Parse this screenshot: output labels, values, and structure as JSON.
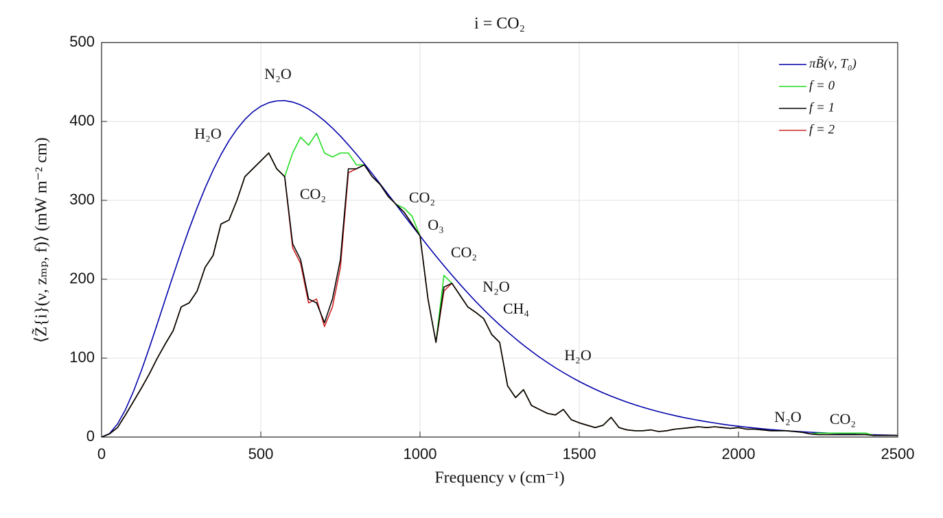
{
  "chart_data": {
    "type": "line",
    "title": "i =  CO₂",
    "x_label": "Frequency ν (cm⁻¹)",
    "y_label": "⟨Z̃{i}(ν, zₘₚ, f)⟩ (mW m⁻² cm)",
    "xlim": [
      0,
      2500
    ],
    "ylim": [
      0,
      500
    ],
    "xticks": [
      0,
      500,
      1000,
      1500,
      2000,
      2500
    ],
    "yticks": [
      0,
      100,
      200,
      300,
      400,
      500
    ],
    "grid": true,
    "legend": "upper right",
    "annotations": [
      "N₂O",
      "H₂O",
      "CO₂",
      "CO₂",
      "O₃",
      "CO₂",
      "N₂O",
      "CH₄",
      "H₂O",
      "N₂O",
      "CO₂"
    ],
    "x": [
      0,
      25,
      50,
      75,
      100,
      125,
      150,
      175,
      200,
      225,
      250,
      275,
      300,
      325,
      350,
      375,
      400,
      425,
      450,
      475,
      500,
      525,
      550,
      575,
      600,
      625,
      650,
      675,
      700,
      725,
      750,
      775,
      800,
      825,
      850,
      875,
      900,
      925,
      950,
      975,
      1000,
      1025,
      1050,
      1075,
      1100,
      1125,
      1150,
      1175,
      1200,
      1225,
      1250,
      1275,
      1300,
      1325,
      1350,
      1375,
      1400,
      1425,
      1450,
      1475,
      1500,
      1525,
      1550,
      1575,
      1600,
      1625,
      1650,
      1675,
      1700,
      1725,
      1750,
      1775,
      1800,
      1825,
      1850,
      1875,
      1900,
      1925,
      1950,
      1975,
      2000,
      2025,
      2050,
      2075,
      2100,
      2125,
      2150,
      2175,
      2200,
      2225,
      2250,
      2275,
      2300,
      2325,
      2350,
      2375,
      2400,
      2425,
      2450,
      2475,
      2500
    ],
    "series": [
      {
        "name": "πB̃(ν, T₀)",
        "color": "#0000aa",
        "values": [
          0,
          4.4,
          16.5,
          34.7,
          57.7,
          84.3,
          113.2,
          143.5,
          174.4,
          205.1,
          235.1,
          263.7,
          290.6,
          315.5,
          338.0,
          358.0,
          375.5,
          390.3,
          402.5,
          412.1,
          419.2,
          423.7,
          426.1,
          426.4,
          424.5,
          421.0,
          415.7,
          408.8,
          400.8,
          391.6,
          381.5,
          370.3,
          358.6,
          346.4,
          333.7,
          320.7,
          307.6,
          294.4,
          280.9,
          267.8,
          254.9,
          242.0,
          229.4,
          217.2,
          205.3,
          193.7,
          182.6,
          171.8,
          161.5,
          151.6,
          142.2,
          133.2,
          124.6,
          116.4,
          108.7,
          101.3,
          94.4,
          87.8,
          81.7,
          75.9,
          70.4,
          65.3,
          60.5,
          56.0,
          51.8,
          47.9,
          44.3,
          40.9,
          37.7,
          34.8,
          32.1,
          29.6,
          27.2,
          25.0,
          23.0,
          21.1,
          19.4,
          17.8,
          16.3,
          14.9,
          13.7,
          12.5,
          11.5,
          10.5,
          9.6,
          8.8,
          8.0,
          7.3,
          6.7,
          6.1,
          5.6,
          5.1,
          4.6,
          4.2,
          3.9,
          3.5,
          3.2,
          2.9,
          2.7,
          2.4,
          2.2
        ]
      },
      {
        "name": "f = 0",
        "color": "#22dd22",
        "values": [
          0,
          4,
          12,
          28,
          45,
          62,
          80,
          100,
          118,
          135,
          165,
          170,
          185,
          215,
          230,
          270,
          275,
          300,
          330,
          340,
          350,
          360,
          340,
          330,
          360,
          380,
          370,
          385,
          360,
          355,
          360,
          360,
          345,
          345,
          330,
          320,
          305,
          295,
          290,
          280,
          255,
          175,
          120,
          205,
          195,
          180,
          165,
          158,
          150,
          130,
          120,
          65,
          50,
          60,
          40,
          35,
          30,
          28,
          35,
          22,
          18,
          15,
          12,
          15,
          25,
          12,
          9,
          8,
          8,
          9,
          7,
          8,
          10,
          11,
          12,
          13,
          12,
          13,
          12,
          11,
          12,
          10,
          10,
          9,
          8,
          8,
          8,
          7,
          6,
          4,
          5,
          5,
          5,
          5,
          5,
          5,
          5,
          2,
          2,
          2,
          2
        ]
      },
      {
        "name": "f = 1",
        "color": "#000000",
        "values": [
          0,
          4,
          12,
          28,
          45,
          62,
          80,
          100,
          118,
          135,
          165,
          170,
          185,
          215,
          230,
          270,
          275,
          300,
          330,
          340,
          350,
          360,
          340,
          330,
          245,
          225,
          175,
          170,
          145,
          175,
          225,
          340,
          340,
          345,
          330,
          320,
          305,
          295,
          285,
          270,
          255,
          175,
          120,
          190,
          195,
          180,
          165,
          158,
          150,
          130,
          120,
          65,
          50,
          60,
          40,
          35,
          30,
          28,
          35,
          22,
          18,
          15,
          12,
          15,
          25,
          12,
          9,
          8,
          8,
          9,
          7,
          8,
          10,
          11,
          12,
          13,
          12,
          13,
          12,
          11,
          12,
          10,
          10,
          9,
          8,
          8,
          8,
          7,
          6,
          4,
          3,
          3,
          3,
          3,
          3,
          3,
          3,
          2,
          2,
          2,
          2
        ]
      },
      {
        "name": "f = 2",
        "color": "#cc2222",
        "values": [
          0,
          4,
          12,
          28,
          45,
          62,
          80,
          100,
          118,
          135,
          165,
          170,
          185,
          215,
          230,
          270,
          275,
          300,
          330,
          340,
          350,
          360,
          340,
          330,
          240,
          220,
          170,
          175,
          140,
          165,
          215,
          335,
          340,
          345,
          330,
          320,
          305,
          295,
          285,
          270,
          255,
          175,
          120,
          185,
          195,
          180,
          165,
          158,
          150,
          130,
          120,
          65,
          50,
          60,
          40,
          35,
          30,
          28,
          35,
          22,
          18,
          15,
          12,
          15,
          25,
          12,
          9,
          8,
          8,
          9,
          7,
          8,
          10,
          11,
          12,
          13,
          12,
          13,
          12,
          11,
          12,
          10,
          10,
          9,
          8,
          8,
          8,
          7,
          6,
          4,
          3,
          3,
          3,
          3,
          3,
          3,
          3,
          2,
          2,
          2,
          2
        ]
      }
    ]
  }
}
